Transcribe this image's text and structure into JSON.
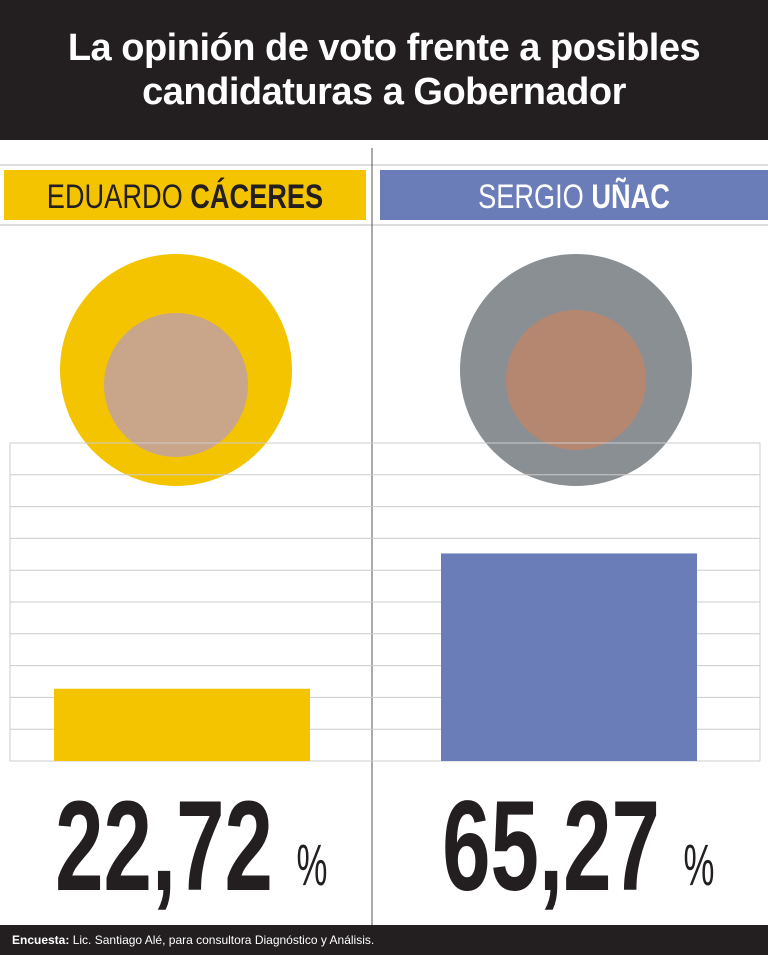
{
  "chart_data": {
    "type": "bar",
    "title": "La opinión de voto frente a posibles candidaturas a Gobernador",
    "first_names": [
      "EDUARDO",
      "SERGIO"
    ],
    "last_names": [
      "CÁCERES",
      "UÑAC"
    ],
    "values": [
      22.72,
      65.27
    ],
    "value_labels": [
      "22,72",
      "65,27"
    ],
    "value_suffix": "%",
    "colors": [
      "#f5c400",
      "#6a7db8"
    ],
    "ylim": [
      0,
      100
    ],
    "yticks": [
      0,
      10,
      20,
      30,
      40,
      50,
      60,
      70,
      80,
      90,
      100
    ],
    "grid": true,
    "source_label": "Encuesta:",
    "source": "Lic. Santiago Alé, para consultora Diagnóstico y Análisis."
  }
}
